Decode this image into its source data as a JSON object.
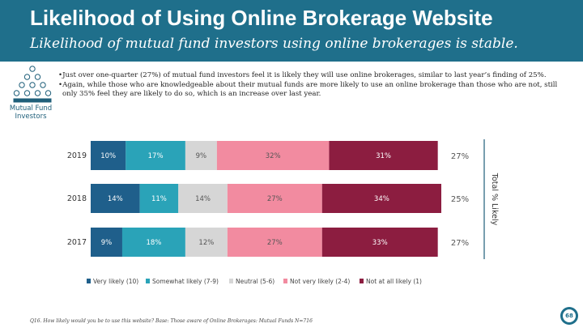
{
  "header": {
    "title": "Likelihood of Using Online Brokerage Website",
    "subtitle": "Likelihood of mutual fund investors using online brokerages is stable."
  },
  "icon": {
    "name": "people-pyramid-icon",
    "label_line1": "Mutual Fund",
    "label_line2": "Investors"
  },
  "bullets": {
    "line1": "•Just over one-quarter (27%) of mutual fund investors feel it is likely they will use online brokerages, similar to last year’s finding of 25%.",
    "line2": "•Again, while those who are knowledgeable about their mutual funds are more likely to use an online brokerage than those who are not, still",
    "line3": "only 35% feel they are likely to do so, which is an increase over last year."
  },
  "chart_data": {
    "type": "bar",
    "orientation": "horizontal",
    "stacked": true,
    "categories": [
      "2019",
      "2018",
      "2017"
    ],
    "series": [
      {
        "name": "Very likely (10)",
        "color": "#1f5f8b",
        "values": [
          10,
          14,
          9
        ],
        "labels": [
          "10%",
          "14%",
          "9%"
        ]
      },
      {
        "name": "Somewhat likely (7-9)",
        "color": "#2aa3b8",
        "values": [
          17,
          11,
          18
        ],
        "labels": [
          "17%",
          "11%",
          "18%"
        ]
      },
      {
        "name": "Neutral (5-6)",
        "color": "#d6d6d6",
        "values": [
          9,
          14,
          12
        ],
        "labels": [
          "9%",
          "14%",
          "12%"
        ]
      },
      {
        "name": "Not very likely (2-4)",
        "color": "#f28ba0",
        "values": [
          32,
          27,
          27
        ],
        "labels": [
          "32%",
          "27%",
          "27%"
        ]
      },
      {
        "name": "Not at all likely (1)",
        "color": "#8c1d40",
        "values": [
          31,
          34,
          33
        ],
        "labels": [
          "31%",
          "34%",
          "33%"
        ]
      }
    ],
    "total_likely": {
      "label": "Total % Likely",
      "values": [
        "27%",
        "25%",
        "27%"
      ]
    },
    "legend_position": "bottom-left",
    "grid": false
  },
  "footnote": "Q16. How likely would you be to use this website? Base: Those aware of Online Brokerages: Mutual Funds N=716",
  "page_number": "68",
  "colors": {
    "header": "#1f6f8b",
    "accent": "#1f6f8b"
  }
}
